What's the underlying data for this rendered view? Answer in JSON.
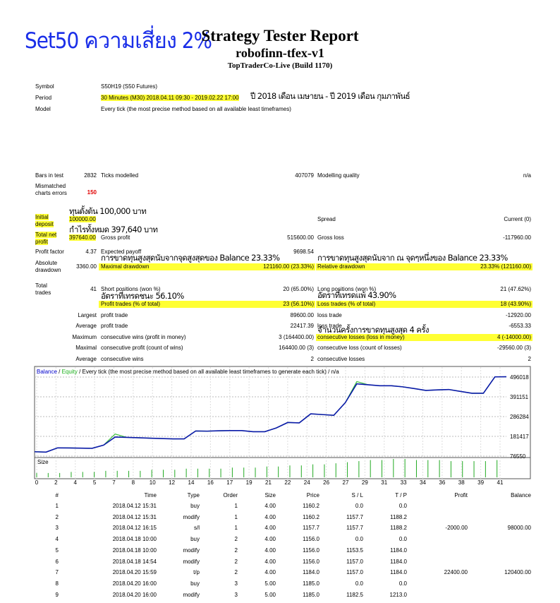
{
  "header": {
    "note": "Set50 ความเสี่ยง 2%",
    "title": "Strategy Tester Report",
    "expert": "robofinn-tfex-v1",
    "server": "TopTraderCo-Live (Build 1170)"
  },
  "info": {
    "symbol_l": "Symbol",
    "symbol": "S50H19 (S50 Futures)",
    "period_l": "Period",
    "period": "30 Minutes (M30) 2018.04.11 09:30 - 2019.02.22 17:00",
    "period_note": "ปี 2018 เดือน เมษายน - ปี 2019 เดือน กุมภาพันธ์",
    "model_l": "Model",
    "model": "Every tick (the most precise method based on all available least timeframes)"
  },
  "stats": {
    "bars_l": "Bars in test",
    "bars": "2832",
    "ticks_l": "Ticks modelled",
    "ticks": "407079",
    "mq_l": "Modelling quality",
    "mq": "n/a",
    "mis_l": "Mismatched charts errors",
    "mis": "150",
    "dep_l": "Initial deposit",
    "dep": "100000.00",
    "dep_note": "ทุนตั้งต้น 100,000 บาท",
    "spread_l": "Spread",
    "spread": "Current (0)",
    "net_l": "Total net profit",
    "net": "397640.00",
    "net_note": "กำไรทั้งหมด 397,640 บาท",
    "gp_l": "Gross profit",
    "gp": "515600.00",
    "gl_l": "Gross loss",
    "gl": "-117960.00",
    "pf_l": "Profit factor",
    "pf": "4.37",
    "ep_l": "Expected payoff",
    "ep": "9698.54",
    "ad_l": "Absolute drawdown",
    "ad": "3360.00",
    "md_note": "การขาดทุนสูงสุดนับจากจุดสูงสุดของ Balance 23.33%",
    "md_l": "Maximal drawdown",
    "md": "121160.00 (23.33%)",
    "rd_note": "การขาดทุนสูงสุดนับจาก ณ จุดๆหนึ่งของ Balance 23.33%",
    "rd_l": "Relative drawdown",
    "rd": "23.33% (121160.00)",
    "tt_l": "Total trades",
    "tt": "41",
    "sp_l": "Short positions (won %)",
    "sp": "20 (65.00%)",
    "lp_l": "Long positions (won %)",
    "lp": "21 (47.62%)",
    "win_note": "อัตราที่เทรดชนะ 56.10%",
    "loss_note": "อัตราที่เทรดแพ้ 43.90%",
    "pt_l": "Profit trades (% of total)",
    "pt": "23 (56.10%)",
    "lt_l": "Loss trades (% of total)",
    "lt": "18 (43.90%)",
    "largest_l": "Largest",
    "lpt_l": "profit trade",
    "lpt": "89600.00",
    "llt_l": "loss trade",
    "llt": "-12920.00",
    "average_l": "Average",
    "apt_l": "profit trade",
    "apt": "22417.39",
    "alt_l": "loss trade",
    "alt": "-6553.33",
    "maximum_l": "Maximum",
    "mcw_l": "consecutive wins (profit in money)",
    "mcw": "3 (164400.00)",
    "mcl_note": "จำนวนครั้งการขาดทุนสูงสุด 4 ครั้ง",
    "mcl_l": "consecutive losses (loss in money)",
    "mcl": "4 (-14000.00)",
    "maximal_l": "Maximal",
    "mcp_l": "consecutive profit (count of wins)",
    "mcp": "164400.00 (3)",
    "mcls_l": "consecutive loss (count of losses)",
    "mcls": "-29560.00 (3)",
    "average2_l": "Average",
    "acw_l": "consecutive wins",
    "acw": "2",
    "acl_l": "consecutive losses",
    "acl": "2"
  },
  "chart": {
    "balance_l": "Balance",
    "sep": "/",
    "equity_l": "Equity",
    "rest": "/ Every tick (the most precise method based on all available least timeframes to generate each tick) / n/a",
    "size_l": "Size",
    "ylim": [
      76550,
      496018
    ],
    "yticks": [
      76550,
      181417,
      286284,
      391151,
      496018
    ],
    "xticks": [
      0,
      2,
      4,
      5,
      7,
      8,
      10,
      12,
      14,
      16,
      17,
      19,
      21,
      22,
      24,
      26,
      27,
      29,
      31,
      33,
      34,
      36,
      38,
      39,
      41
    ],
    "balance": [
      100000,
      98000,
      120400,
      120000,
      119000,
      118000,
      135000,
      178000,
      176000,
      174000,
      172000,
      170000,
      168000,
      168000,
      210000,
      209000,
      211000,
      212000,
      212000,
      206000,
      206000,
      226000,
      255000,
      253000,
      301000,
      297000,
      293000,
      360000,
      460000,
      455000,
      450000,
      450000,
      444000,
      435000,
      425000,
      428000,
      430000,
      420000,
      410000,
      410000,
      497000,
      497640
    ],
    "equity": [
      100000,
      98000,
      120400,
      120000,
      119000,
      118000,
      135000,
      194000,
      176000,
      174000,
      172000,
      170000,
      168000,
      168000,
      210000,
      209000,
      211000,
      212000,
      212000,
      206000,
      206000,
      226000,
      255000,
      253000,
      301000,
      297000,
      293000,
      360000,
      472000,
      455000,
      450000,
      450000,
      444000,
      435000,
      425000,
      428000,
      430000,
      420000,
      410000,
      410000,
      497000,
      497640
    ],
    "size": [
      4,
      4,
      4,
      5,
      5,
      5,
      6,
      6,
      6,
      6,
      7,
      7,
      7,
      8,
      8,
      8,
      8,
      9,
      9,
      9,
      10,
      10,
      11,
      11,
      12,
      12,
      13,
      14,
      15,
      16,
      16,
      17,
      17,
      16,
      16,
      16,
      15,
      15,
      15,
      15,
      16
    ]
  },
  "trades": {
    "columns": [
      "#",
      "Time",
      "Type",
      "Order",
      "Size",
      "Price",
      "S / L",
      "T / P",
      "Profit",
      "Balance"
    ],
    "rows": [
      [
        "1",
        "2018.04.12 15:31",
        "buy",
        "1",
        "4.00",
        "1160.2",
        "0.0",
        "0.0"
      ],
      [
        "2",
        "2018.04.12 15:31",
        "modify",
        "1",
        "4.00",
        "1160.2",
        "1157.7",
        "1188.2"
      ],
      [
        "3",
        "2018.04.12 16:15",
        "s/l",
        "1",
        "4.00",
        "1157.7",
        "1157.7",
        "1188.2",
        "-2000.00",
        "98000.00"
      ],
      [
        "4",
        "2018.04.18 10:00",
        "buy",
        "2",
        "4.00",
        "1156.0",
        "0.0",
        "0.0"
      ],
      [
        "5",
        "2018.04.18 10:00",
        "modify",
        "2",
        "4.00",
        "1156.0",
        "1153.5",
        "1184.0"
      ],
      [
        "6",
        "2018.04.18 14:54",
        "modify",
        "2",
        "4.00",
        "1156.0",
        "1157.0",
        "1184.0"
      ],
      [
        "7",
        "2018.04.20 15:59",
        "t/p",
        "2",
        "4.00",
        "1184.0",
        "1157.0",
        "1184.0",
        "22400.00",
        "120400.00"
      ],
      [
        "8",
        "2018.04.20 16:00",
        "buy",
        "3",
        "5.00",
        "1185.0",
        "0.0",
        "0.0"
      ],
      [
        "9",
        "2018.04.20 16:00",
        "modify",
        "3",
        "5.00",
        "1185.0",
        "1182.5",
        "1213.0"
      ]
    ]
  }
}
